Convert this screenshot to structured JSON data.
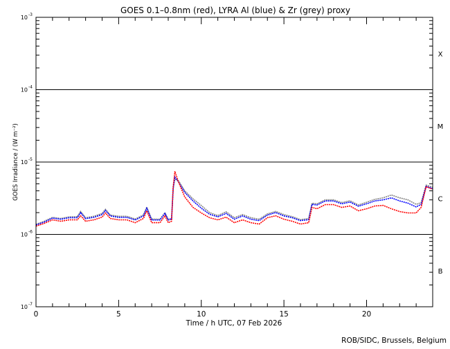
{
  "chart_data": {
    "type": "line",
    "title": "GOES 0.1–0.8nm (red), LYRA Al (blue) & Zr (grey) proxy",
    "xlabel": "Time / h UTC, 07 Feb 2026",
    "ylabel": "GOES Irradiance / (W m⁻²)",
    "xlim": [
      0,
      24
    ],
    "ylim": [
      1e-07,
      0.001
    ],
    "yscale": "log",
    "x_ticks": [
      "0",
      "5",
      "10",
      "15",
      "20"
    ],
    "x_tick_values": [
      0,
      5,
      10,
      15,
      20
    ],
    "y_ticks": [
      {
        "value": 0.001,
        "base": "10",
        "exp": "-3"
      },
      {
        "value": 0.0001,
        "base": "10",
        "exp": "-4"
      },
      {
        "value": 1e-05,
        "base": "10",
        "exp": "-5"
      },
      {
        "value": 1e-06,
        "base": "10",
        "exp": "-6"
      },
      {
        "value": 1e-07,
        "base": "10",
        "exp": "-7"
      }
    ],
    "flare_classes": [
      {
        "label": "X",
        "lower": 0.0001
      },
      {
        "label": "M",
        "lower": 1e-05
      },
      {
        "label": "C",
        "lower": 1e-06
      },
      {
        "label": "B",
        "lower": 1e-07
      }
    ],
    "threshold_lines": [
      0.0001,
      1e-05,
      1e-06
    ],
    "x": [
      0,
      0.5,
      1,
      1.5,
      2,
      2.5,
      2.7,
      3,
      3.5,
      4,
      4.2,
      4.5,
      5,
      5.5,
      6,
      6.5,
      6.7,
      7,
      7.5,
      7.8,
      8,
      8.2,
      8.3,
      8.4,
      8.6,
      9,
      9.5,
      10,
      10.5,
      11,
      11.5,
      12,
      12.5,
      13,
      13.5,
      14,
      14.5,
      15,
      15.5,
      16,
      16.5,
      16.7,
      17,
      17.5,
      18,
      18.5,
      19,
      19.5,
      20,
      20.5,
      21,
      21.5,
      22,
      22.5,
      23,
      23.3,
      23.6,
      24
    ],
    "series": [
      {
        "name": "GOES 0.1-0.8nm",
        "color": "#ff0000",
        "values": [
          1.3e-06,
          1.42e-06,
          1.59e-06,
          1.52e-06,
          1.59e-06,
          1.59e-06,
          1.81e-06,
          1.52e-06,
          1.59e-06,
          1.73e-06,
          1.98e-06,
          1.66e-06,
          1.59e-06,
          1.59e-06,
          1.45e-06,
          1.66e-06,
          2.12e-06,
          1.45e-06,
          1.45e-06,
          1.81e-06,
          1.45e-06,
          1.52e-06,
          4.57e-06,
          7.43e-06,
          5.46e-06,
          3.29e-06,
          2.36e-06,
          1.98e-06,
          1.7e-06,
          1.59e-06,
          1.73e-06,
          1.45e-06,
          1.59e-06,
          1.45e-06,
          1.39e-06,
          1.7e-06,
          1.81e-06,
          1.62e-06,
          1.52e-06,
          1.39e-06,
          1.45e-06,
          2.36e-06,
          2.26e-06,
          2.58e-06,
          2.58e-06,
          2.36e-06,
          2.47e-06,
          2.12e-06,
          2.26e-06,
          2.47e-06,
          2.52e-06,
          2.26e-06,
          2.07e-06,
          1.98e-06,
          1.98e-06,
          2.36e-06,
          4.57e-06,
          4.2e-06
        ]
      },
      {
        "name": "LYRA Al proxy",
        "color": "#0000ff",
        "values": [
          1.35e-06,
          1.48e-06,
          1.68e-06,
          1.62e-06,
          1.7e-06,
          1.7e-06,
          2e-06,
          1.65e-06,
          1.72e-06,
          1.88e-06,
          2.15e-06,
          1.8e-06,
          1.72e-06,
          1.72e-06,
          1.58e-06,
          1.8e-06,
          2.3e-06,
          1.58e-06,
          1.58e-06,
          1.95e-06,
          1.58e-06,
          1.62e-06,
          4.4e-06,
          6.2e-06,
          5.4e-06,
          3.8e-06,
          2.9e-06,
          2.3e-06,
          1.9e-06,
          1.75e-06,
          1.95e-06,
          1.62e-06,
          1.8e-06,
          1.62e-06,
          1.55e-06,
          1.85e-06,
          2e-06,
          1.8e-06,
          1.7e-06,
          1.55e-06,
          1.6e-06,
          2.6e-06,
          2.55e-06,
          2.9e-06,
          2.9e-06,
          2.65e-06,
          2.8e-06,
          2.45e-06,
          2.65e-06,
          2.9e-06,
          3e-06,
          3.2e-06,
          2.9e-06,
          2.7e-06,
          2.4e-06,
          2.6e-06,
          4.6e-06,
          4.3e-06
        ]
      },
      {
        "name": "LYRA Zr proxy",
        "color": "#808080",
        "values": [
          1.38e-06,
          1.52e-06,
          1.72e-06,
          1.66e-06,
          1.75e-06,
          1.76e-06,
          2.08e-06,
          1.7e-06,
          1.78e-06,
          1.95e-06,
          2.22e-06,
          1.85e-06,
          1.78e-06,
          1.78e-06,
          1.63e-06,
          1.86e-06,
          2.38e-06,
          1.63e-06,
          1.62e-06,
          2e-06,
          1.62e-06,
          1.66e-06,
          4.3e-06,
          5.8e-06,
          5.6e-06,
          4e-06,
          3.1e-06,
          2.5e-06,
          2e-06,
          1.82e-06,
          2.05e-06,
          1.7e-06,
          1.88e-06,
          1.7e-06,
          1.62e-06,
          1.92e-06,
          2.08e-06,
          1.88e-06,
          1.76e-06,
          1.6e-06,
          1.66e-06,
          2.7e-06,
          2.65e-06,
          3e-06,
          3e-06,
          2.75e-06,
          2.92e-06,
          2.55e-06,
          2.78e-06,
          3.05e-06,
          3.2e-06,
          3.5e-06,
          3.2e-06,
          3e-06,
          2.6e-06,
          2.75e-06,
          4.8e-06,
          4.5e-06
        ]
      }
    ]
  },
  "footer": "ROB/SIDC, Brussels, Belgium"
}
